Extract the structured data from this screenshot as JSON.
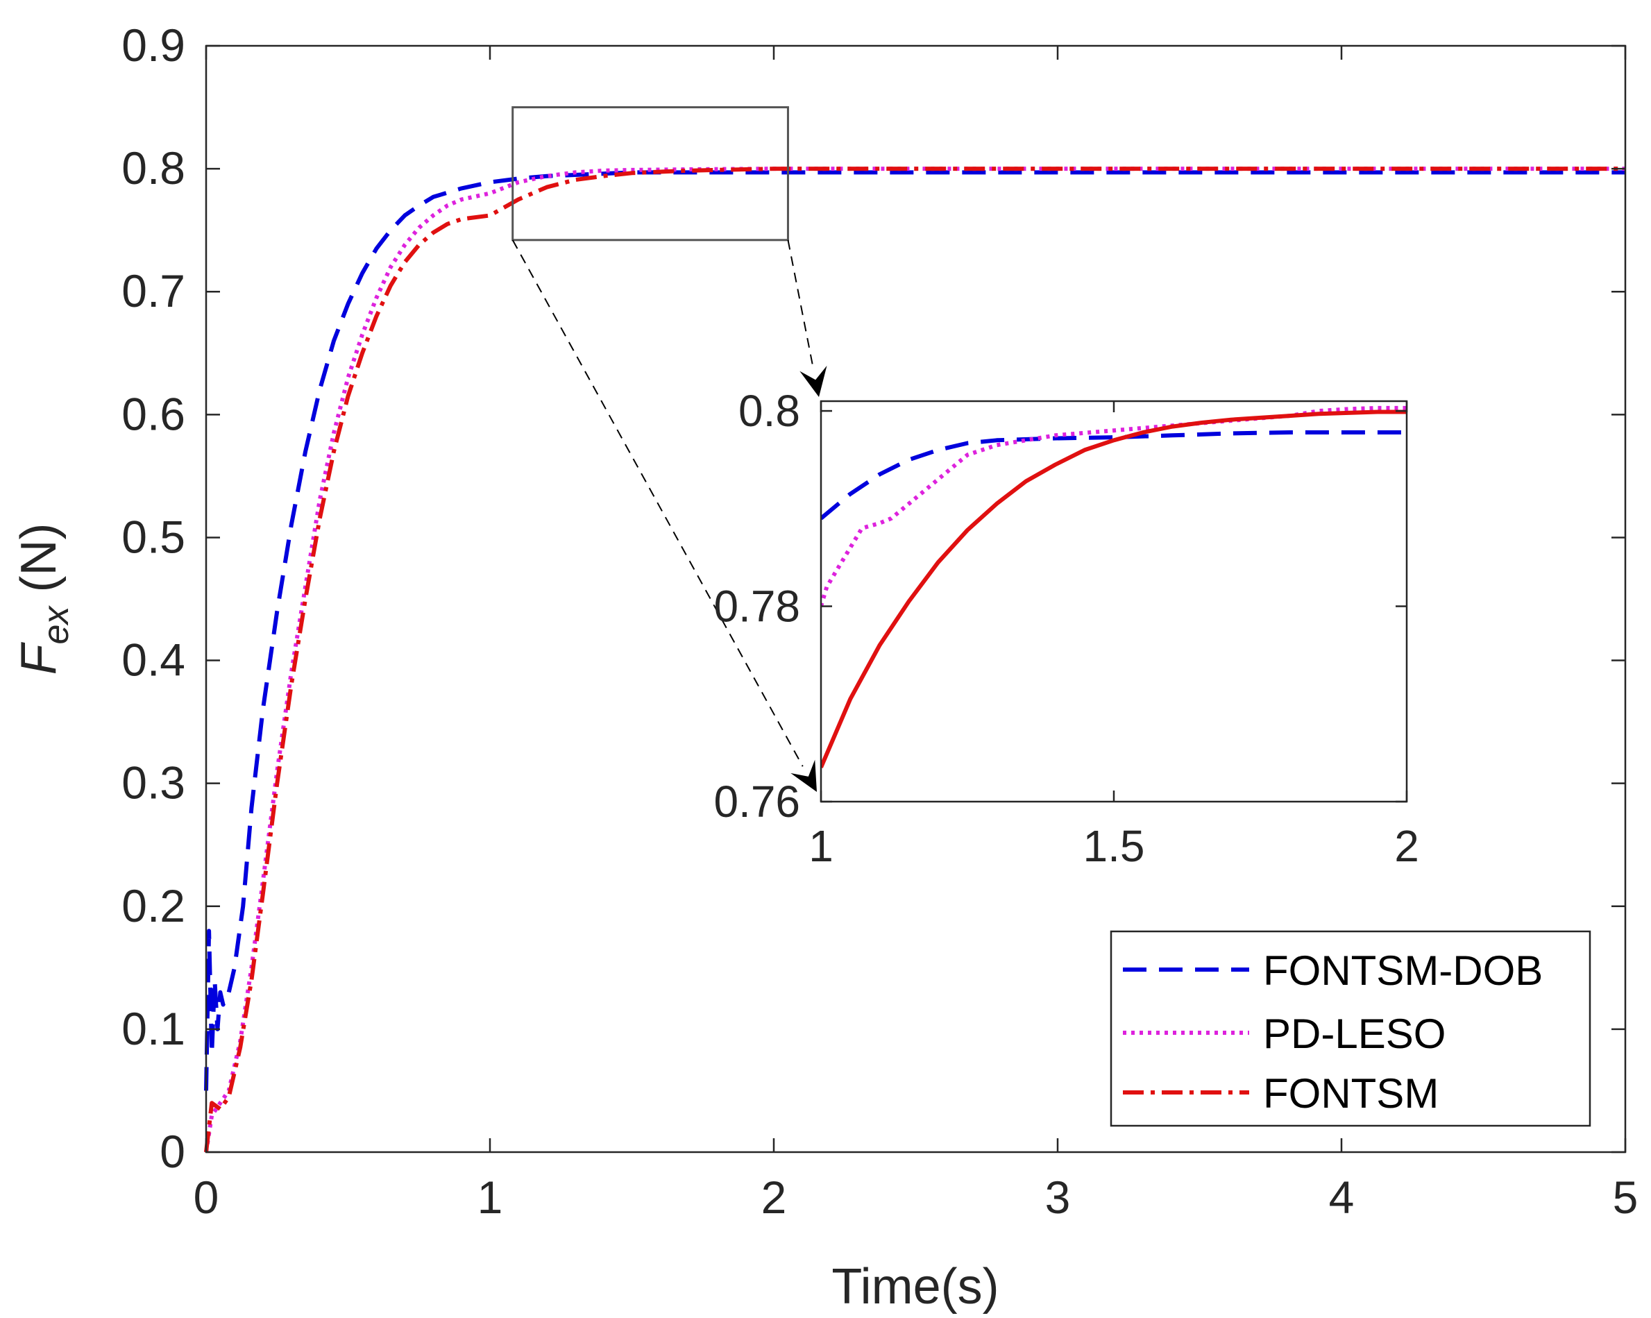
{
  "chart_data": {
    "type": "line",
    "title": "",
    "xlabel": "Time(s)",
    "ylabel": {
      "main": "F",
      "subscript": "ex",
      "unit": " (N)"
    },
    "xlim": [
      0,
      5
    ],
    "ylim": [
      0,
      0.9
    ],
    "xticks": [
      0,
      1,
      2,
      3,
      4,
      5
    ],
    "xtick_labels": [
      "0",
      "1",
      "2",
      "3",
      "4",
      "5"
    ],
    "yticks": [
      0,
      0.1,
      0.2,
      0.3,
      0.4,
      0.5,
      0.6,
      0.7,
      0.8,
      0.9
    ],
    "ytick_labels": [
      "0",
      "0.1",
      "0.2",
      "0.3",
      "0.4",
      "0.5",
      "0.6",
      "0.7",
      "0.8",
      "0.9"
    ],
    "grid": false,
    "legend_position": "bottom-right",
    "series": [
      {
        "name": "FONTSM-DOB",
        "color": "#0000dd",
        "style": "dashed",
        "points": [
          [
            0,
            0.05
          ],
          [
            0.01,
            0.18
          ],
          [
            0.02,
            0.08
          ],
          [
            0.03,
            0.14
          ],
          [
            0.04,
            0.1
          ],
          [
            0.05,
            0.13
          ],
          [
            0.06,
            0.12
          ],
          [
            0.08,
            0.13
          ],
          [
            0.1,
            0.15
          ],
          [
            0.13,
            0.2
          ],
          [
            0.16,
            0.28
          ],
          [
            0.2,
            0.36
          ],
          [
            0.25,
            0.44
          ],
          [
            0.3,
            0.51
          ],
          [
            0.35,
            0.57
          ],
          [
            0.4,
            0.62
          ],
          [
            0.45,
            0.66
          ],
          [
            0.5,
            0.69
          ],
          [
            0.55,
            0.715
          ],
          [
            0.6,
            0.735
          ],
          [
            0.65,
            0.75
          ],
          [
            0.7,
            0.762
          ],
          [
            0.75,
            0.77
          ],
          [
            0.8,
            0.777
          ],
          [
            0.9,
            0.784
          ],
          [
            1.0,
            0.789
          ],
          [
            1.1,
            0.792
          ],
          [
            1.2,
            0.794
          ],
          [
            1.3,
            0.795
          ],
          [
            1.5,
            0.797
          ],
          [
            2.0,
            0.797
          ],
          [
            3.0,
            0.797
          ],
          [
            4.0,
            0.797
          ],
          [
            5.0,
            0.797
          ]
        ]
      },
      {
        "name": "PD-LESO",
        "color": "#dd22dd",
        "style": "dotted",
        "points": [
          [
            0,
            0
          ],
          [
            0.02,
            0.03
          ],
          [
            0.05,
            0.04
          ],
          [
            0.08,
            0.05
          ],
          [
            0.12,
            0.09
          ],
          [
            0.16,
            0.15
          ],
          [
            0.2,
            0.22
          ],
          [
            0.25,
            0.31
          ],
          [
            0.3,
            0.39
          ],
          [
            0.35,
            0.46
          ],
          [
            0.4,
            0.53
          ],
          [
            0.45,
            0.585
          ],
          [
            0.5,
            0.63
          ],
          [
            0.55,
            0.665
          ],
          [
            0.6,
            0.695
          ],
          [
            0.65,
            0.72
          ],
          [
            0.7,
            0.738
          ],
          [
            0.75,
            0.752
          ],
          [
            0.8,
            0.762
          ],
          [
            0.85,
            0.77
          ],
          [
            0.9,
            0.775
          ],
          [
            1.0,
            0.78
          ],
          [
            1.1,
            0.789
          ],
          [
            1.2,
            0.794
          ],
          [
            1.3,
            0.797
          ],
          [
            1.4,
            0.7985
          ],
          [
            1.5,
            0.799
          ],
          [
            1.7,
            0.7995
          ],
          [
            2.0,
            0.8
          ],
          [
            3.0,
            0.8
          ],
          [
            4.0,
            0.8
          ],
          [
            5.0,
            0.8
          ]
        ]
      },
      {
        "name": "FONTSM",
        "color": "#e01010",
        "style": "dashdot",
        "points": [
          [
            0,
            0
          ],
          [
            0.02,
            0.04
          ],
          [
            0.05,
            0.035
          ],
          [
            0.08,
            0.045
          ],
          [
            0.12,
            0.085
          ],
          [
            0.16,
            0.14
          ],
          [
            0.2,
            0.21
          ],
          [
            0.25,
            0.3
          ],
          [
            0.3,
            0.38
          ],
          [
            0.35,
            0.45
          ],
          [
            0.4,
            0.515
          ],
          [
            0.45,
            0.57
          ],
          [
            0.5,
            0.615
          ],
          [
            0.55,
            0.65
          ],
          [
            0.6,
            0.68
          ],
          [
            0.65,
            0.705
          ],
          [
            0.7,
            0.724
          ],
          [
            0.75,
            0.738
          ],
          [
            0.8,
            0.748
          ],
          [
            0.85,
            0.755
          ],
          [
            0.9,
            0.759
          ],
          [
            1.0,
            0.762
          ],
          [
            1.1,
            0.775
          ],
          [
            1.2,
            0.785
          ],
          [
            1.3,
            0.791
          ],
          [
            1.4,
            0.794
          ],
          [
            1.5,
            0.7965
          ],
          [
            1.6,
            0.7975
          ],
          [
            1.7,
            0.7985
          ],
          [
            1.8,
            0.799
          ],
          [
            1.9,
            0.7995
          ],
          [
            2.0,
            0.8
          ],
          [
            3.0,
            0.8
          ],
          [
            4.0,
            0.8
          ],
          [
            5.0,
            0.8
          ]
        ]
      }
    ],
    "zoom_box": {
      "x": [
        1.08,
        2.05
      ],
      "y": [
        0.742,
        0.85
      ]
    },
    "inset": {
      "xlim": [
        1,
        2
      ],
      "ylim": [
        0.76,
        0.801
      ],
      "xticks": [
        1,
        1.5,
        2
      ],
      "xtick_labels": [
        "1",
        "1.5",
        "2"
      ],
      "yticks": [
        0.76,
        0.78,
        0.8
      ],
      "ytick_labels": [
        "0.76",
        "0.78",
        "0.8"
      ],
      "series": [
        {
          "name": "FONTSM-DOB",
          "color": "#0000dd",
          "style": "dashed",
          "points": [
            [
              1.0,
              0.789
            ],
            [
              1.05,
              0.7915
            ],
            [
              1.1,
              0.7935
            ],
            [
              1.15,
              0.795
            ],
            [
              1.2,
              0.796
            ],
            [
              1.25,
              0.7967
            ],
            [
              1.3,
              0.797
            ],
            [
              1.4,
              0.7972
            ],
            [
              1.5,
              0.7973
            ],
            [
              1.6,
              0.7975
            ],
            [
              1.7,
              0.7977
            ],
            [
              1.8,
              0.7978
            ],
            [
              1.9,
              0.7978
            ],
            [
              2.0,
              0.7978
            ]
          ]
        },
        {
          "name": "PD-LESO",
          "color": "#dd22dd",
          "style": "dotted",
          "points": [
            [
              1.0,
              0.78
            ],
            [
              1.01,
              0.782
            ],
            [
              1.03,
              0.784
            ],
            [
              1.05,
              0.786
            ],
            [
              1.07,
              0.788
            ],
            [
              1.1,
              0.7885
            ],
            [
              1.12,
              0.789
            ],
            [
              1.15,
              0.7905
            ],
            [
              1.18,
              0.792
            ],
            [
              1.2,
              0.793
            ],
            [
              1.25,
              0.7955
            ],
            [
              1.3,
              0.7965
            ],
            [
              1.35,
              0.797
            ],
            [
              1.4,
              0.7975
            ],
            [
              1.5,
              0.798
            ],
            [
              1.6,
              0.7985
            ],
            [
              1.7,
              0.799
            ],
            [
              1.8,
              0.7995
            ],
            [
              1.85,
              0.8
            ],
            [
              1.9,
              0.8002
            ],
            [
              1.95,
              0.8003
            ],
            [
              2.0,
              0.8003
            ]
          ]
        },
        {
          "name": "FONTSM",
          "color": "#e01010",
          "style": "solid",
          "points": [
            [
              1.0,
              0.7635
            ],
            [
              1.05,
              0.7705
            ],
            [
              1.1,
              0.776
            ],
            [
              1.15,
              0.7805
            ],
            [
              1.2,
              0.7845
            ],
            [
              1.25,
              0.7878
            ],
            [
              1.3,
              0.7905
            ],
            [
              1.35,
              0.7928
            ],
            [
              1.4,
              0.7945
            ],
            [
              1.45,
              0.796
            ],
            [
              1.5,
              0.797
            ],
            [
              1.55,
              0.7978
            ],
            [
              1.6,
              0.7984
            ],
            [
              1.65,
              0.7988
            ],
            [
              1.7,
              0.7991
            ],
            [
              1.75,
              0.7993
            ],
            [
              1.8,
              0.7995
            ],
            [
              1.85,
              0.7997
            ],
            [
              1.9,
              0.7998
            ],
            [
              1.95,
              0.7999
            ],
            [
              2.0,
              0.7999
            ]
          ]
        }
      ]
    }
  }
}
